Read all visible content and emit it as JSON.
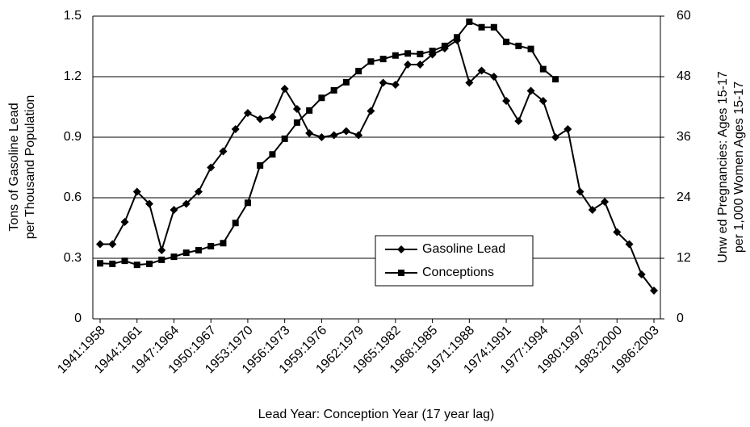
{
  "chart_data": {
    "type": "line",
    "xlabel": "Lead Year: Conception Year (17 year lag)",
    "ylabel": [
      "Tons of Gasoline Lead",
      "per Thousand Population"
    ],
    "y2label": [
      "Unw ed Pregnancies: Ages 15-17",
      "per 1,000 Women Ages 15-17"
    ],
    "categories": [
      "1941:1958",
      null,
      null,
      "1944:1961",
      null,
      null,
      "1947:1964",
      null,
      null,
      "1950:1967",
      null,
      null,
      "1953:1970",
      null,
      null,
      "1956:1973",
      null,
      null,
      "1959:1976",
      null,
      null,
      "1962:1979",
      null,
      null,
      "1965:1982",
      null,
      null,
      "1968:1985",
      null,
      null,
      "1971:1988",
      null,
      null,
      "1974:1991",
      null,
      null,
      "1977:1994",
      null,
      null,
      "1980:1997",
      null,
      null,
      "1983:2000",
      null,
      null,
      "1986:2003"
    ],
    "series": [
      {
        "name": "Gasoline Lead",
        "color": "#000000",
        "marker": "diamond",
        "axis": "y",
        "values": [
          0.37,
          0.37,
          0.48,
          0.63,
          0.57,
          0.34,
          0.54,
          0.57,
          0.63,
          0.75,
          0.83,
          0.94,
          1.02,
          0.99,
          1.0,
          1.14,
          1.04,
          0.92,
          0.9,
          0.91,
          0.93,
          0.91,
          1.03,
          1.17,
          1.16,
          1.26,
          1.26,
          1.31,
          1.34,
          1.38,
          1.17,
          1.23,
          1.2,
          1.08,
          0.98,
          1.13,
          1.08,
          0.9,
          0.94,
          0.63,
          0.54,
          0.58,
          0.43,
          0.37,
          0.22,
          0.14
        ]
      },
      {
        "name": "Conceptions",
        "color": "#000000",
        "marker": "square",
        "axis": "y2",
        "values": [
          11.0,
          10.9,
          11.5,
          10.7,
          10.9,
          11.7,
          12.3,
          13.1,
          13.6,
          14.4,
          15.0,
          19.0,
          23.0,
          30.4,
          32.6,
          35.7,
          38.9,
          41.3,
          43.8,
          45.3,
          46.9,
          49.1,
          51.0,
          51.5,
          52.2,
          52.6,
          52.5,
          53.1,
          54.1,
          55.8,
          58.9,
          57.8,
          57.8,
          54.9,
          54.1,
          53.5,
          49.5,
          47.5,
          null,
          null,
          null,
          null,
          null,
          null,
          null,
          null
        ]
      }
    ],
    "ylim": [
      0,
      1.5
    ],
    "yticks": [
      0,
      0.3,
      0.6,
      0.9,
      1.2,
      1.5
    ],
    "y2lim": [
      0,
      60
    ],
    "y2ticks": [
      0,
      12,
      24,
      36,
      48,
      60
    ],
    "grid": true,
    "legend": "inside"
  }
}
